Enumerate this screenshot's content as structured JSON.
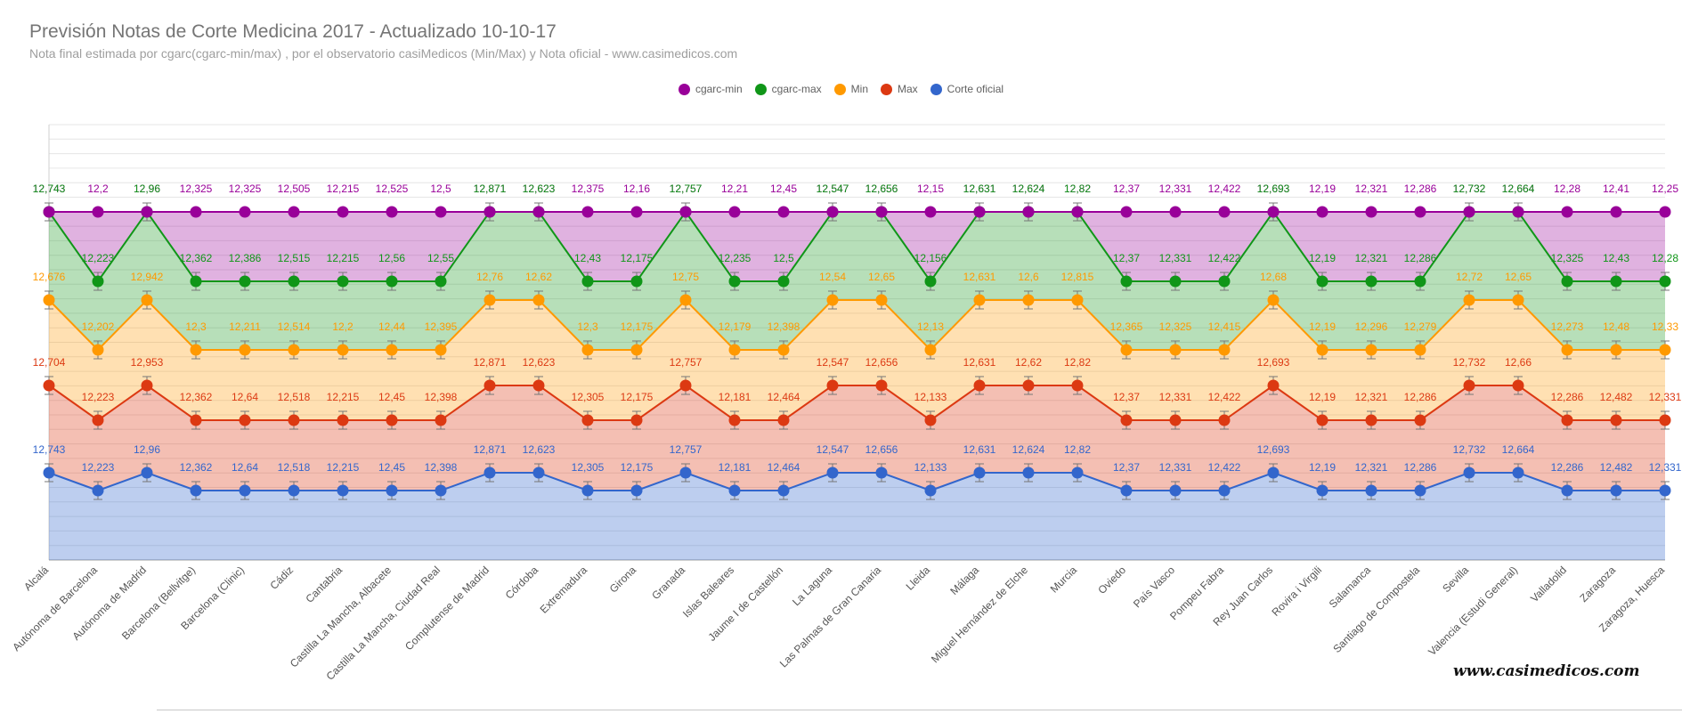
{
  "title": "Previsión Notas de Corte Medicina 2017 - Actualizado 10-10-17",
  "subtitle": "Nota final estimada por cgarc(cgarc-min/max) , por el observatorio casiMedicos (Min/Max) y Nota oficial  - www.casimedicos.com",
  "watermark": "www.casimedicos.com",
  "legend": [
    {
      "name": "cgarc-min",
      "color": "#990099"
    },
    {
      "name": "cgarc-max",
      "color": "#109618"
    },
    {
      "name": "Min",
      "color": "#ff9900"
    },
    {
      "name": "Max",
      "color": "#dc3912"
    },
    {
      "name": "Corte oficial",
      "color": "#3366cc"
    }
  ],
  "chart_data": {
    "type": "area",
    "title": "Previsión Notas de Corte Medicina 2017 - Actualizado 10-10-17",
    "grid": true,
    "legend_position": "top",
    "categories": [
      "Alcalá",
      "Autónoma de Barcelona",
      "Autónoma de Madrid",
      "Barcelona (Bellvitge)",
      "Barcelona (Clinic)",
      "Cádiz",
      "Cantabria",
      "Castilla La Mancha, Albacete",
      "Castilla La Mancha, Ciudad Real",
      "Complutense de Madrid",
      "Córdoba",
      "Extremadura",
      "Girona",
      "Granada",
      "Islas Baleares",
      "Jaume I de Castellón",
      "La Laguna",
      "Las Palmas de Gran Canaria",
      "Lleida",
      "Málaga",
      "Miguel Hernández de Elche",
      "Murcia",
      "Oviedo",
      "País Vasco",
      "Pompeu Fabra",
      "Rey Juan Carlos",
      "Rovira i Virgili",
      "Salamanca",
      "Santiago de Compostela",
      "Sevilla",
      "Valencia (Estudi General)",
      "Valladolid",
      "Zaragoza",
      "Zaragoza, Huesca"
    ],
    "series": [
      {
        "name": "cgarc-min",
        "color": "#990099",
        "labels": [
          "12,743",
          "12,2",
          "12,96",
          "12,325",
          "12,325",
          "12,505",
          "12,215",
          "12,525",
          "12,5",
          "12,871",
          "12,623",
          "12,375",
          "12,16",
          "12,757",
          "12,21",
          "12,45",
          "12,547",
          "12,656",
          "12,15",
          "12,631",
          "12,624",
          "12,82",
          "12,37",
          "12,331",
          "12,422",
          "12,693",
          "12,19",
          "12,321",
          "12,286",
          "12,732",
          "12,664",
          "12,28",
          "12,41",
          "12,25"
        ]
      },
      {
        "name": "cgarc-max",
        "color": "#109618",
        "labels": [
          "12,743",
          "12,223",
          "12,96",
          "12,362",
          "12,386",
          "12,515",
          "12,215",
          "12,56",
          "12,55",
          "12,871",
          "12,623",
          "12,43",
          "12,175",
          "12,757",
          "12,235",
          "12,5",
          "12,547",
          "12,656",
          "12,156",
          "12,631",
          "12,624",
          "12,82",
          "12,37",
          "12,331",
          "12,422",
          "12,693",
          "12,19",
          "12,321",
          "12,286",
          "12,732",
          "12,664",
          "12,325",
          "12,43",
          "12,28"
        ]
      },
      {
        "name": "Min",
        "color": "#ff9900",
        "labels": [
          "12,676",
          "12,202",
          "12,942",
          "12,3",
          "12,211",
          "12,514",
          "12,2",
          "12,44",
          "12,395",
          "12,76",
          "12,62",
          "12,3",
          "12,175",
          "12,75",
          "12,179",
          "12,398",
          "12,54",
          "12,65",
          "12,13",
          "12,631",
          "12,6",
          "12,815",
          "12,365",
          "12,325",
          "12,415",
          "12,68",
          "12,19",
          "12,296",
          "12,279",
          "12,72",
          "12,65",
          "12,273",
          "12,48",
          "12,33"
        ]
      },
      {
        "name": "Max",
        "color": "#dc3912",
        "labels": [
          "12,704",
          "12,223",
          "12,953",
          "12,362",
          "12,64",
          "12,518",
          "12,215",
          "12,45",
          "12,398",
          "12,871",
          "12,623",
          "12,305",
          "12,175",
          "12,757",
          "12,181",
          "12,464",
          "12,547",
          "12,656",
          "12,133",
          "12,631",
          "12,62",
          "12,82",
          "12,37",
          "12,331",
          "12,422",
          "12,693",
          "12,19",
          "12,321",
          "12,286",
          "12,732",
          "12,66",
          "12,286",
          "12,482",
          "12,331"
        ]
      },
      {
        "name": "Corte oficial",
        "color": "#3366cc",
        "labels": [
          "12,743",
          "12,223",
          "12,96",
          "12,362",
          "12,64",
          "12,518",
          "12,215",
          "12,45",
          "12,398",
          "12,871",
          "12,623",
          "12,305",
          "12,175",
          "12,757",
          "12,181",
          "12,464",
          "12,547",
          "12,656",
          "12,133",
          "12,631",
          "12,624",
          "12,82",
          "12,37",
          "12,331",
          "12,422",
          "12,693",
          "12,19",
          "12,321",
          "12,286",
          "12,732",
          "12,664",
          "12,286",
          "12,482",
          "12,331"
        ]
      }
    ]
  }
}
